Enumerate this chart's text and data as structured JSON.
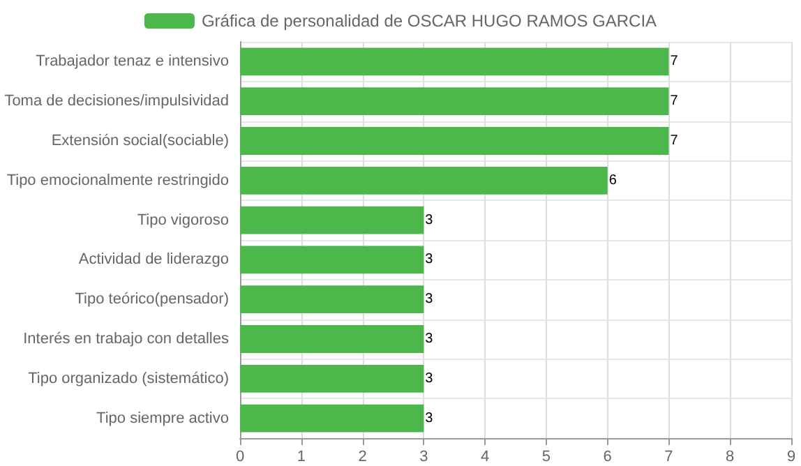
{
  "chart_data": {
    "type": "bar",
    "orientation": "horizontal",
    "categories": [
      "Trabajador tenaz e intensivo",
      "Toma de decisiones/impulsividad",
      "Extensión social(sociable)",
      "Tipo emocionalmente restringido",
      "Tipo vigoroso",
      "Actividad de liderazgo",
      "Tipo teórico(pensador)",
      "Interés en trabajo con detalles",
      "Tipo organizado (sistemático)",
      "Tipo siempre activo"
    ],
    "series": [
      {
        "name": "Gráfica de personalidad de OSCAR HUGO RAMOS GARCIA",
        "color": "#4cb84c",
        "values": [
          7,
          7,
          7,
          6,
          3,
          3,
          3,
          3,
          3,
          3
        ]
      }
    ],
    "xlim": [
      0,
      9
    ],
    "xticks": [
      0,
      1,
      2,
      3,
      4,
      5,
      6,
      7,
      8,
      9
    ],
    "grid": true,
    "legend": "top",
    "data_labels": true
  }
}
